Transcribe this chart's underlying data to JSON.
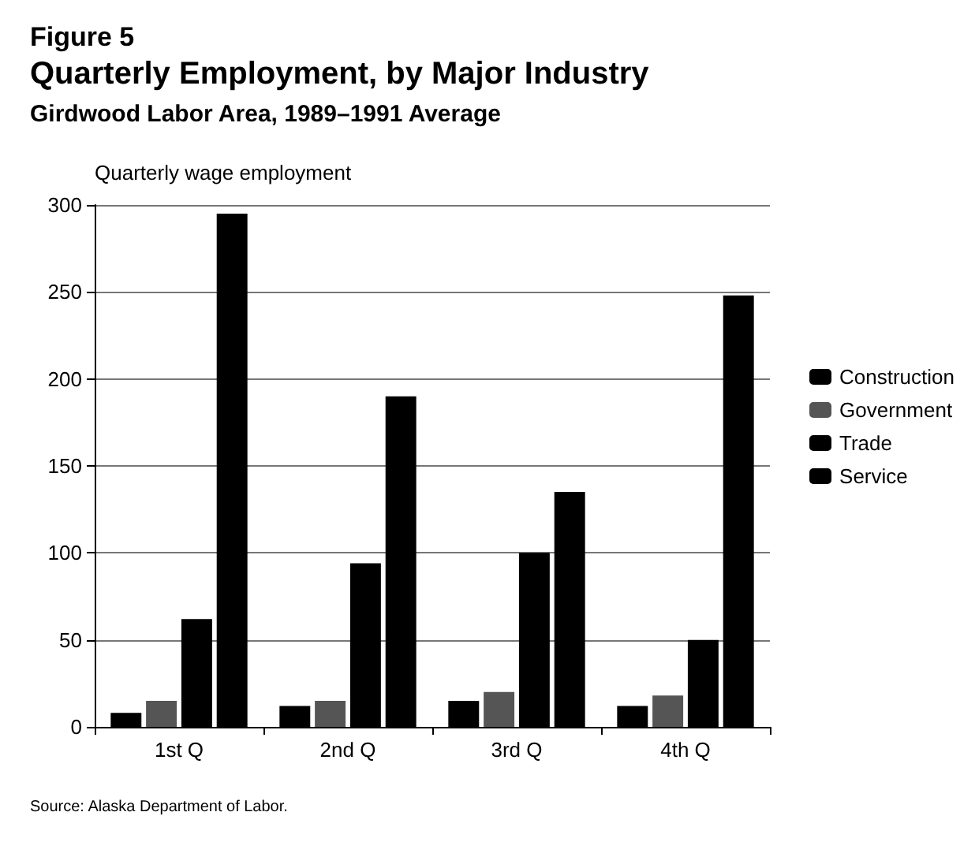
{
  "chart_data": {
    "type": "bar",
    "title": "Figure 5",
    "subtitle": "Quarterly Employment, by Major Industry",
    "ylabel": "Quarterly wage employment",
    "annotations": [
      "Girdwood Labor Area, 1989–1991 Average",
      "Source: Alaska Department of Labor."
    ],
    "categories": [
      "1st Q",
      "2nd Q",
      "3rd Q",
      "4th Q"
    ],
    "series": [
      {
        "name": "Construction",
        "color": "#000000",
        "values": [
          8,
          12,
          15,
          12
        ]
      },
      {
        "name": "Government",
        "color": "#555555",
        "values": [
          15,
          15,
          20,
          18
        ]
      },
      {
        "name": "Trade",
        "color": "#000000",
        "values": [
          62,
          94,
          100,
          50
        ]
      },
      {
        "name": "Service",
        "color": "#000000",
        "values": [
          295,
          190,
          135,
          248
        ]
      }
    ],
    "ylim": [
      0,
      300
    ],
    "yticks": [
      0,
      50,
      100,
      150,
      200,
      250,
      300
    ],
    "grid": "y",
    "legend": "right"
  }
}
